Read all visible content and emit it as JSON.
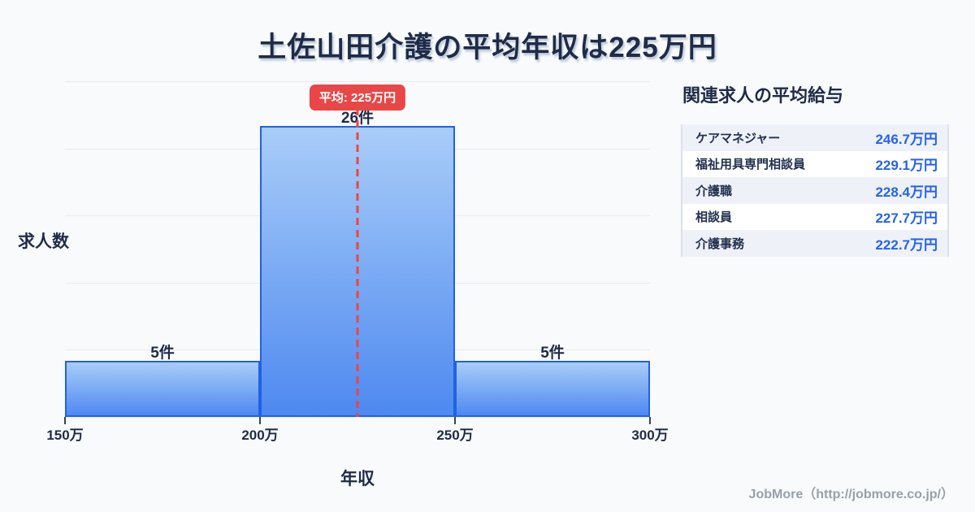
{
  "page": {
    "title": "土佐山田介護の平均年収は225万円",
    "footer": "JobMore（http://jobmore.co.jp/）"
  },
  "chart_data": {
    "type": "bar",
    "title": "土佐山田介護の平均年収は225万円",
    "xlabel": "年収",
    "ylabel": "求人数",
    "categories": [
      "150万-200万",
      "200万-250万",
      "250万-300万"
    ],
    "values": [
      5,
      26,
      5
    ],
    "bar_labels": [
      "5件",
      "26件",
      "5件"
    ],
    "x_ticks": [
      "150万",
      "200万",
      "250万",
      "300万"
    ],
    "ylim": [
      0,
      30
    ],
    "grid": true,
    "legend": "none",
    "average": {
      "value_label": "平均: 225万円",
      "value": 225,
      "x_fraction": 0.5
    },
    "colors": {
      "bar_gradient_top": "#a9cdf8",
      "bar_gradient_bottom": "#4e89f0",
      "bar_border": "#2062e4",
      "average_line": "#ee4444",
      "badge_background": "#e94747",
      "badge_text": "#ffffff",
      "gridline": "#e7eaf0"
    }
  },
  "related": {
    "heading": "関連求人の平均給与",
    "rows": [
      {
        "name": "ケアマネジャー",
        "value": "246.7万円"
      },
      {
        "name": "福祉用具専門相談員",
        "value": "229.1万円"
      },
      {
        "name": "介護職",
        "value": "228.4万円"
      },
      {
        "name": "相談員",
        "value": "227.7万円"
      },
      {
        "name": "介護事務",
        "value": "222.7万円"
      }
    ],
    "value_color": "#2563eb"
  }
}
